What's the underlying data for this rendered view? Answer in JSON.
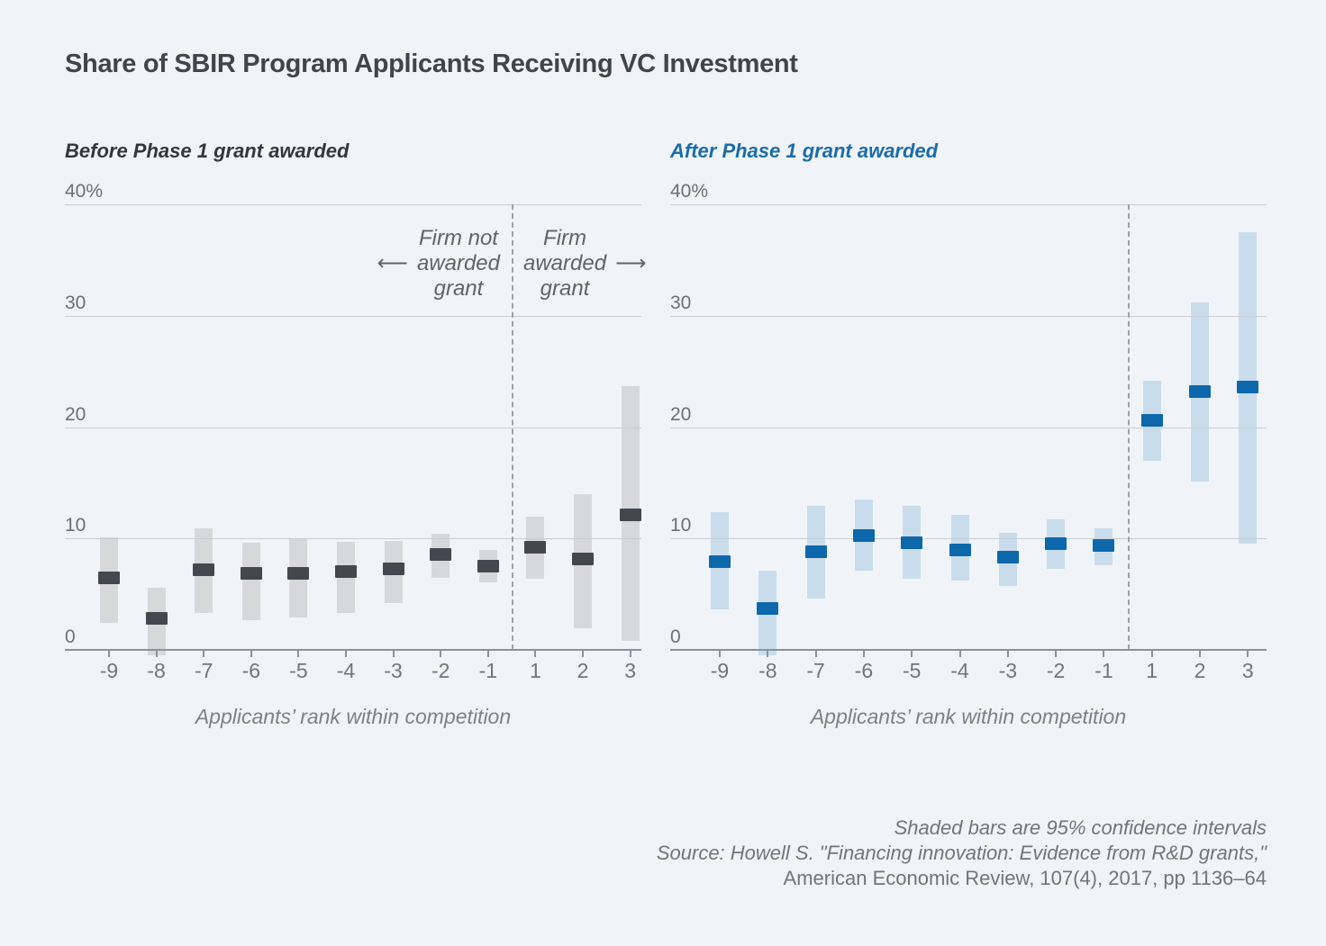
{
  "title": "Share of SBIR Program Applicants Receiving VC Investment",
  "panels": [
    {
      "key": "before",
      "title": "Before Phase 1 grant awarded",
      "title_color": "#31373d",
      "ci_color": "#d7d8da",
      "point_color": "#43484e"
    },
    {
      "key": "after",
      "title": "After Phase 1 grant awarded",
      "title_color": "#1b6ca8",
      "ci_color": "#c9dcec",
      "point_color": "#0d67ab"
    }
  ],
  "axis": {
    "xlabel": "Applicants’ rank within competition",
    "ylim": [
      0,
      40
    ],
    "y_ticks": [
      {
        "value": 40,
        "label": "40%"
      },
      {
        "value": 30,
        "label": "30"
      },
      {
        "value": 20,
        "label": "20"
      },
      {
        "value": 10,
        "label": "10"
      },
      {
        "value": 0,
        "label": "0"
      }
    ],
    "categories": [
      "-9",
      "-8",
      "-7",
      "-6",
      "-5",
      "-4",
      "-3",
      "-2",
      "-1",
      "1",
      "2",
      "3"
    ]
  },
  "annotation": {
    "left": {
      "line1": "Firm not",
      "line2": "awarded",
      "line3": "grant",
      "arrow": "⟵"
    },
    "right": {
      "line1": "Firm",
      "line2": "awarded",
      "line3": "grant",
      "arrow": "⟶"
    }
  },
  "footnote": {
    "line1": "Shaded bars are 95% confidence intervals",
    "line2": "Source: Howell S. \"Financing innovation: Evidence from R&D grants,\"",
    "line3": "American Economic Review, 107(4), 2017, pp 1136–64"
  },
  "chart_data": [
    {
      "type": "scatter",
      "subtype": "point-estimates-with-95%-confidence-bars",
      "title": "Before Phase 1 grant awarded",
      "categories": [
        "-9",
        "-8",
        "-7",
        "-6",
        "-5",
        "-4",
        "-3",
        "-2",
        "-1",
        "1",
        "2",
        "3"
      ],
      "points": [
        6.5,
        2.8,
        7.2,
        6.9,
        6.9,
        7.0,
        7.3,
        8.6,
        7.5,
        9.2,
        8.2,
        12.1
      ],
      "ci_low": [
        2.4,
        -0.5,
        3.3,
        2.7,
        2.9,
        3.3,
        4.2,
        6.5,
        6.1,
        6.4,
        1.9,
        0.8
      ],
      "ci_high": [
        10.1,
        5.6,
        10.9,
        9.6,
        9.9,
        9.7,
        9.8,
        10.4,
        9.0,
        12.0,
        14.0,
        23.7
      ],
      "xlabel": "Applicants’ rank within competition",
      "ylim": [
        0,
        40
      ],
      "grid": true,
      "divider_between": [
        "-1",
        "1"
      ],
      "annotations": [
        "Firm not awarded grant (left of divider)",
        "Firm awarded grant (right of divider)"
      ]
    },
    {
      "type": "scatter",
      "subtype": "point-estimates-with-95%-confidence-bars",
      "title": "After Phase 1 grant awarded",
      "categories": [
        "-9",
        "-8",
        "-7",
        "-6",
        "-5",
        "-4",
        "-3",
        "-2",
        "-1",
        "1",
        "2",
        "3"
      ],
      "points": [
        7.9,
        3.7,
        8.8,
        10.3,
        9.6,
        9.0,
        8.3,
        9.5,
        9.4,
        20.6,
        23.2,
        23.6
      ],
      "ci_low": [
        3.6,
        -0.5,
        4.6,
        7.1,
        6.4,
        6.2,
        5.7,
        7.3,
        7.6,
        17.0,
        15.1,
        9.5
      ],
      "ci_high": [
        12.4,
        7.1,
        12.9,
        13.5,
        12.9,
        12.1,
        10.5,
        11.7,
        10.9,
        24.2,
        31.2,
        37.5
      ],
      "xlabel": "Applicants’ rank within competition",
      "ylim": [
        0,
        40
      ],
      "grid": true,
      "divider_between": [
        "-1",
        "1"
      ]
    }
  ]
}
